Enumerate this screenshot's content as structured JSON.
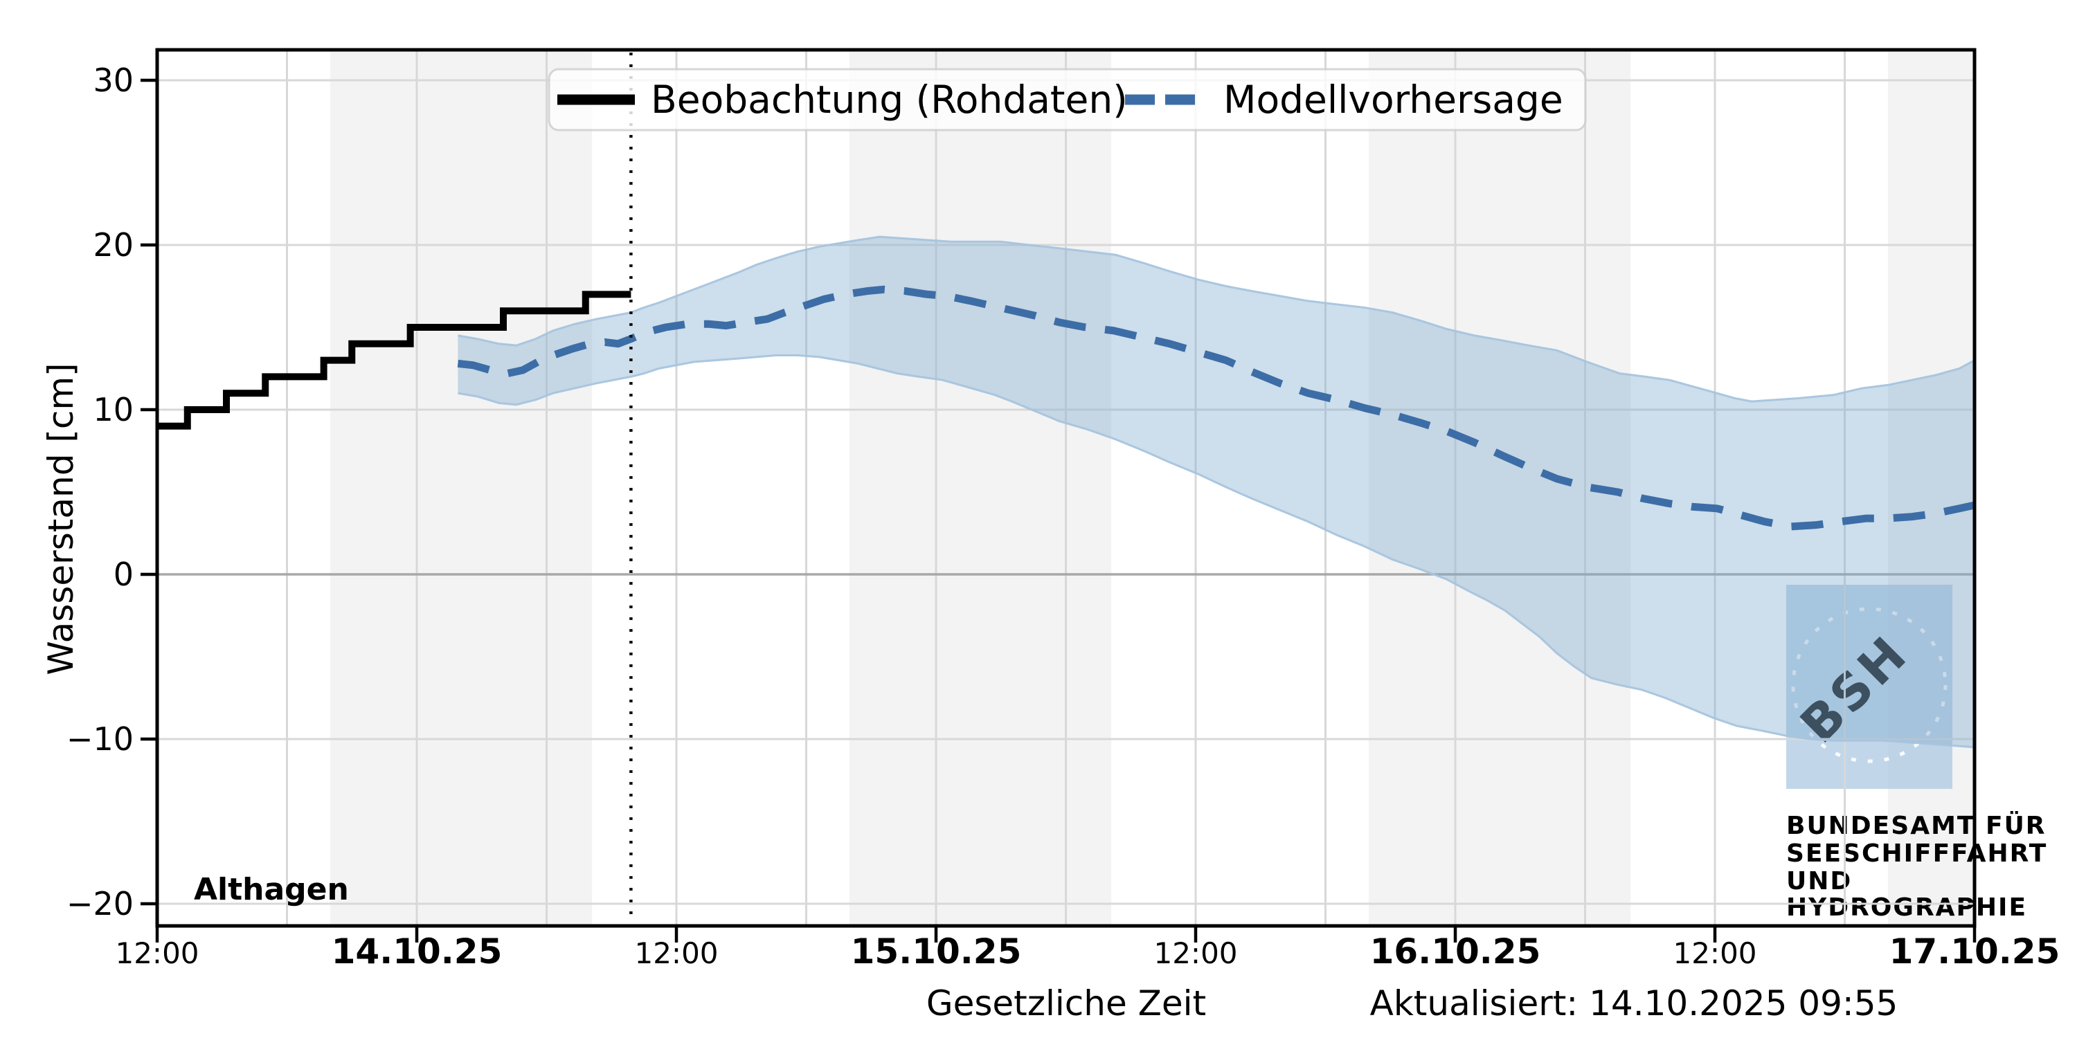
{
  "station": "Althagen",
  "updated_label": "Aktualisiert: 14.10.2025 09:55",
  "legend": {
    "observation": "Beobachtung (Rohdaten)",
    "forecast": "Modellvorhersage"
  },
  "colors": {
    "observation": "#000000",
    "forecast": "#3d6da6",
    "band_fill": "#7ba7cc",
    "band_edge": "#a6c4de",
    "night_band": "#f3f3f3",
    "grid": "#d8d8d8",
    "grid_zero": "#a8a8a8",
    "now_line": "#111111",
    "legend_border": "#cfcfcf",
    "logo_blue": "#a9c7e1",
    "logo_text": "#c9dbec"
  },
  "logo": {
    "text": "BSH",
    "lines": [
      "BUNDESAMT FÜR",
      "SEESCHIFFFAHRT",
      "UND",
      "HYDROGRAPHIE"
    ]
  },
  "chart_data": {
    "type": "line",
    "title": "",
    "xlabel": "Gesetzliche Zeit",
    "ylabel": "Wasserstand [cm]",
    "x_unit": "hours since 13.10.2025 12:00",
    "xlim": [
      0,
      84
    ],
    "ylim": [
      -21.3,
      31.9
    ],
    "y_ticks": [
      30,
      20,
      10,
      0,
      -10,
      -20
    ],
    "x_ticks": [
      {
        "h": 0,
        "label": "12:00",
        "bold": false
      },
      {
        "h": 12,
        "label": "14.10.25",
        "bold": true
      },
      {
        "h": 24,
        "label": "12:00",
        "bold": false
      },
      {
        "h": 36,
        "label": "15.10.25",
        "bold": true
      },
      {
        "h": 48,
        "label": "12:00",
        "bold": false
      },
      {
        "h": 60,
        "label": "16.10.25",
        "bold": true
      },
      {
        "h": 72,
        "label": "12:00",
        "bold": false
      },
      {
        "h": 84,
        "label": "17.10.25",
        "bold": true
      }
    ],
    "grid_step_hours": 6,
    "grid_on": true,
    "legend_position": "upper center",
    "night_bands_h": [
      [
        8.0,
        20.1
      ],
      [
        32.0,
        44.1
      ],
      [
        56.0,
        68.1
      ],
      [
        80.0,
        84.0
      ]
    ],
    "now_line_h": 21.9,
    "series": [
      {
        "name": "Beobachtung (Rohdaten)",
        "type": "step",
        "end_h": 21.9,
        "points": [
          [
            0,
            9
          ],
          [
            1.4,
            10
          ],
          [
            3.2,
            11
          ],
          [
            5.0,
            12
          ],
          [
            7.7,
            13
          ],
          [
            9.0,
            14
          ],
          [
            11.7,
            15
          ],
          [
            16.0,
            16
          ],
          [
            19.8,
            17
          ]
        ]
      },
      {
        "name": "Modellvorhersage",
        "type": "dashed_line",
        "points": [
          [
            13.9,
            12.8
          ],
          [
            14.6,
            12.7
          ],
          [
            15.4,
            12.4
          ],
          [
            16.2,
            12.2
          ],
          [
            16.9,
            12.4
          ],
          [
            17.6,
            12.9
          ],
          [
            18.3,
            13.3
          ],
          [
            19.2,
            13.7
          ],
          [
            20.0,
            14.0
          ],
          [
            20.7,
            14.1
          ],
          [
            21.3,
            14.0
          ],
          [
            21.9,
            14.3
          ],
          [
            22.6,
            14.7
          ],
          [
            23.5,
            15.0
          ],
          [
            24.5,
            15.2
          ],
          [
            25.5,
            15.2
          ],
          [
            26.3,
            15.1
          ],
          [
            27.2,
            15.3
          ],
          [
            28.2,
            15.5
          ],
          [
            29.0,
            15.9
          ],
          [
            29.9,
            16.3
          ],
          [
            30.8,
            16.7
          ],
          [
            31.8,
            17.0
          ],
          [
            32.8,
            17.2
          ],
          [
            33.6,
            17.3
          ],
          [
            34.6,
            17.2
          ],
          [
            35.6,
            17.0
          ],
          [
            36.5,
            16.9
          ],
          [
            37.6,
            16.6
          ],
          [
            38.6,
            16.3
          ],
          [
            39.6,
            16.0
          ],
          [
            40.6,
            15.7
          ],
          [
            41.7,
            15.3
          ],
          [
            42.9,
            15.0
          ],
          [
            44.2,
            14.8
          ],
          [
            45.5,
            14.4
          ],
          [
            46.8,
            14.0
          ],
          [
            48.1,
            13.5
          ],
          [
            49.4,
            13.0
          ],
          [
            50.6,
            12.3
          ],
          [
            51.9,
            11.6
          ],
          [
            53.2,
            11.0
          ],
          [
            54.5,
            10.6
          ],
          [
            55.8,
            10.1
          ],
          [
            57.1,
            9.7
          ],
          [
            58.4,
            9.2
          ],
          [
            59.6,
            8.7
          ],
          [
            60.9,
            8.0
          ],
          [
            62.2,
            7.2
          ],
          [
            63.4,
            6.5
          ],
          [
            64.7,
            5.8
          ],
          [
            66.1,
            5.3
          ],
          [
            67.5,
            5.0
          ],
          [
            68.7,
            4.6
          ],
          [
            69.9,
            4.3
          ],
          [
            71.0,
            4.1
          ],
          [
            72.1,
            4.0
          ],
          [
            73.2,
            3.6
          ],
          [
            74.3,
            3.2
          ],
          [
            75.5,
            2.9
          ],
          [
            76.7,
            3.0
          ],
          [
            77.8,
            3.2
          ],
          [
            79.0,
            3.4
          ],
          [
            80.0,
            3.4
          ],
          [
            81.1,
            3.5
          ],
          [
            82.2,
            3.7
          ],
          [
            83.3,
            4.0
          ],
          [
            84,
            4.2
          ]
        ]
      },
      {
        "name": "Vorhersageband Obergrenze",
        "type": "band_top",
        "points": [
          [
            13.9,
            14.5
          ],
          [
            14.8,
            14.3
          ],
          [
            15.8,
            14.0
          ],
          [
            16.6,
            13.9
          ],
          [
            17.5,
            14.3
          ],
          [
            18.3,
            14.8
          ],
          [
            19.3,
            15.2
          ],
          [
            20.3,
            15.5
          ],
          [
            21.1,
            15.7
          ],
          [
            21.9,
            15.9
          ],
          [
            22.5,
            16.2
          ],
          [
            23.2,
            16.5
          ],
          [
            24.0,
            16.9
          ],
          [
            24.8,
            17.3
          ],
          [
            25.8,
            17.8
          ],
          [
            26.8,
            18.3
          ],
          [
            27.7,
            18.8
          ],
          [
            28.6,
            19.2
          ],
          [
            29.6,
            19.6
          ],
          [
            30.6,
            19.9
          ],
          [
            31.5,
            20.1
          ],
          [
            32.4,
            20.3
          ],
          [
            33.4,
            20.5
          ],
          [
            34.5,
            20.4
          ],
          [
            35.6,
            20.3
          ],
          [
            36.7,
            20.2
          ],
          [
            37.8,
            20.2
          ],
          [
            39.0,
            20.2
          ],
          [
            40.3,
            20.0
          ],
          [
            41.7,
            19.8
          ],
          [
            43.0,
            19.6
          ],
          [
            44.3,
            19.4
          ],
          [
            45.6,
            18.9
          ],
          [
            46.8,
            18.4
          ],
          [
            48.1,
            17.9
          ],
          [
            49.4,
            17.5
          ],
          [
            50.6,
            17.2
          ],
          [
            51.9,
            16.9
          ],
          [
            53.2,
            16.6
          ],
          [
            54.5,
            16.4
          ],
          [
            55.8,
            16.2
          ],
          [
            57.1,
            15.9
          ],
          [
            58.4,
            15.4
          ],
          [
            59.6,
            14.9
          ],
          [
            60.9,
            14.5
          ],
          [
            62.2,
            14.2
          ],
          [
            63.4,
            13.9
          ],
          [
            64.7,
            13.6
          ],
          [
            66.1,
            12.9
          ],
          [
            67.6,
            12.2
          ],
          [
            68.8,
            12.0
          ],
          [
            69.9,
            11.8
          ],
          [
            71.0,
            11.4
          ],
          [
            72.1,
            11.0
          ],
          [
            72.9,
            10.7
          ],
          [
            73.7,
            10.5
          ],
          [
            74.8,
            10.6
          ],
          [
            75.9,
            10.7
          ],
          [
            77.5,
            10.9
          ],
          [
            78.8,
            11.3
          ],
          [
            80.0,
            11.5
          ],
          [
            81.1,
            11.8
          ],
          [
            82.2,
            12.1
          ],
          [
            83.3,
            12.5
          ],
          [
            84,
            13.0
          ]
        ]
      },
      {
        "name": "Vorhersageband Untergrenze",
        "type": "band_bottom",
        "points": [
          [
            13.9,
            11.0
          ],
          [
            14.8,
            10.8
          ],
          [
            15.8,
            10.4
          ],
          [
            16.6,
            10.3
          ],
          [
            17.5,
            10.6
          ],
          [
            18.3,
            11.0
          ],
          [
            19.3,
            11.3
          ],
          [
            20.3,
            11.6
          ],
          [
            21.1,
            11.8
          ],
          [
            21.9,
            12.0
          ],
          [
            22.5,
            12.2
          ],
          [
            23.2,
            12.5
          ],
          [
            24.0,
            12.7
          ],
          [
            24.8,
            12.9
          ],
          [
            25.8,
            13.0
          ],
          [
            26.8,
            13.1
          ],
          [
            27.7,
            13.2
          ],
          [
            28.6,
            13.3
          ],
          [
            29.6,
            13.3
          ],
          [
            30.6,
            13.2
          ],
          [
            31.5,
            13.0
          ],
          [
            32.4,
            12.8
          ],
          [
            33.3,
            12.5
          ],
          [
            34.2,
            12.2
          ],
          [
            35.2,
            12.0
          ],
          [
            36.3,
            11.8
          ],
          [
            37.1,
            11.5
          ],
          [
            37.9,
            11.2
          ],
          [
            38.7,
            10.9
          ],
          [
            39.5,
            10.5
          ],
          [
            40.6,
            9.9
          ],
          [
            41.7,
            9.3
          ],
          [
            43.0,
            8.8
          ],
          [
            44.3,
            8.2
          ],
          [
            45.6,
            7.5
          ],
          [
            46.8,
            6.8
          ],
          [
            48.1,
            6.1
          ],
          [
            49.4,
            5.3
          ],
          [
            50.6,
            4.6
          ],
          [
            51.9,
            3.9
          ],
          [
            53.2,
            3.2
          ],
          [
            54.5,
            2.4
          ],
          [
            55.8,
            1.7
          ],
          [
            57.1,
            0.9
          ],
          [
            58.4,
            0.3
          ],
          [
            59.6,
            -0.3
          ],
          [
            60.6,
            -1.0
          ],
          [
            61.5,
            -1.6
          ],
          [
            62.3,
            -2.2
          ],
          [
            63.0,
            -2.9
          ],
          [
            63.9,
            -3.8
          ],
          [
            64.7,
            -4.8
          ],
          [
            65.5,
            -5.6
          ],
          [
            66.3,
            -6.3
          ],
          [
            67.5,
            -6.7
          ],
          [
            68.6,
            -7.0
          ],
          [
            69.7,
            -7.5
          ],
          [
            70.8,
            -8.1
          ],
          [
            71.9,
            -8.7
          ],
          [
            73.0,
            -9.2
          ],
          [
            74.2,
            -9.5
          ],
          [
            75.3,
            -9.8
          ],
          [
            76.4,
            -10.0
          ],
          [
            77.5,
            -10.1
          ],
          [
            78.7,
            -10.1
          ],
          [
            79.8,
            -10.1
          ],
          [
            80.9,
            -10.2
          ],
          [
            82.0,
            -10.3
          ],
          [
            83.0,
            -10.4
          ],
          [
            84,
            -10.5
          ]
        ]
      }
    ]
  }
}
